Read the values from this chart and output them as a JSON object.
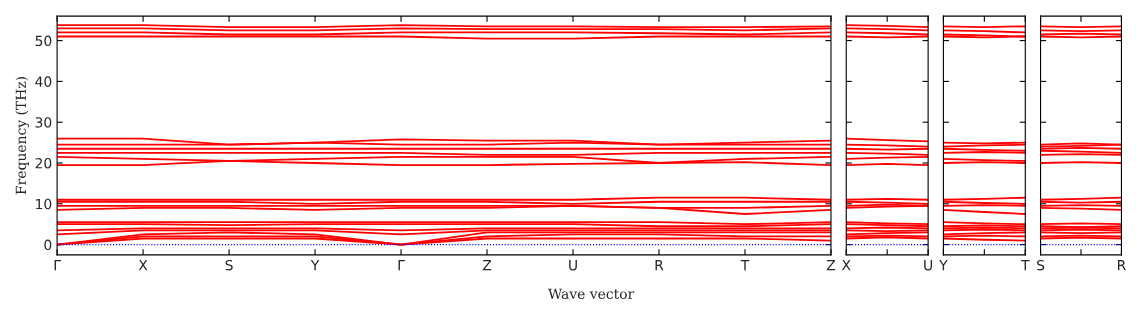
{
  "chart_data": [
    {
      "type": "line",
      "ylabel": "Frequency (THz)",
      "xlabel": "Wave vector",
      "categories": [
        "Γ",
        "X",
        "S",
        "Y",
        "Γ",
        "Z",
        "U",
        "R",
        "T",
        "Z"
      ],
      "ylim": [
        -2.5,
        56
      ],
      "yticks": [
        0,
        10,
        20,
        30,
        40,
        50
      ],
      "ref_lines": [
        {
          "axis": "y",
          "value": 0,
          "color": "#0000ff",
          "line_style": "dotted"
        }
      ],
      "series": [
        {
          "color": "#ff0000",
          "values": [
            51,
            51,
            51,
            51,
            51,
            50.5,
            50.5,
            51,
            51,
            51
          ]
        },
        {
          "color": "#ff0000",
          "values": [
            52,
            52,
            51.5,
            51.5,
            52,
            52,
            52,
            51.8,
            51.5,
            52
          ]
        },
        {
          "color": "#ff0000",
          "values": [
            53,
            53,
            52.5,
            52.5,
            53,
            52.8,
            52.8,
            52.8,
            52.5,
            53
          ]
        },
        {
          "color": "#ff0000",
          "values": [
            53.8,
            53.8,
            53.3,
            53.3,
            53.8,
            53.5,
            53.5,
            53.3,
            53.3,
            53.5
          ]
        },
        {
          "color": "#ff0000",
          "values": [
            19.5,
            19.5,
            20.5,
            20,
            19.5,
            19.5,
            19.8,
            20,
            20.2,
            19.5
          ]
        },
        {
          "color": "#ff0000",
          "values": [
            21.5,
            21,
            20.5,
            21,
            21.5,
            21.5,
            21.5,
            20,
            21,
            21.5
          ]
        },
        {
          "color": "#ff0000",
          "values": [
            22.5,
            22.5,
            22.5,
            22.5,
            22.5,
            22,
            22,
            22.5,
            22.5,
            22.5
          ]
        },
        {
          "color": "#ff0000",
          "values": [
            23.5,
            23.5,
            23.5,
            23.5,
            23.5,
            23.5,
            23.5,
            23.5,
            23.5,
            23.5
          ]
        },
        {
          "color": "#ff0000",
          "values": [
            24.5,
            24.5,
            24.5,
            25,
            24.5,
            24.5,
            25,
            24.5,
            24.5,
            24.5
          ]
        },
        {
          "color": "#ff0000",
          "values": [
            26,
            26,
            24.5,
            25,
            25.8,
            25.5,
            25.5,
            24.5,
            25,
            25.5
          ]
        },
        {
          "color": "#ff0000",
          "values": [
            8.5,
            9,
            9,
            8.5,
            9,
            9,
            9.5,
            9,
            7.5,
            8.5
          ]
        },
        {
          "color": "#ff0000",
          "values": [
            9.5,
            9.5,
            9.5,
            9.5,
            9.5,
            9.5,
            9.5,
            9,
            9,
            9.5
          ]
        },
        {
          "color": "#ff0000",
          "values": [
            10.5,
            10.5,
            10.5,
            10,
            10.5,
            10.5,
            10,
            10.5,
            10.5,
            10.5
          ]
        },
        {
          "color": "#ff0000",
          "values": [
            11,
            11,
            11,
            11,
            11,
            11,
            11,
            11.5,
            11.5,
            11
          ]
        },
        {
          "color": "#ff0000",
          "values": [
            0,
            1.5,
            1.5,
            1.5,
            0,
            1.5,
            1.5,
            1.5,
            1.5,
            1
          ]
        },
        {
          "color": "#ff0000",
          "values": [
            0,
            2,
            2,
            2,
            0,
            2,
            2.5,
            2.5,
            2,
            2
          ]
        },
        {
          "color": "#ff0000",
          "values": [
            0,
            2.5,
            3,
            2.5,
            0,
            3,
            3,
            3,
            3,
            3
          ]
        },
        {
          "color": "#ff0000",
          "values": [
            2.5,
            3.5,
            3.5,
            3.5,
            2.5,
            3.5,
            3.5,
            3.5,
            3.5,
            3.5
          ]
        },
        {
          "color": "#ff0000",
          "values": [
            3.5,
            4,
            4,
            4,
            3.5,
            4,
            4,
            4,
            4,
            4
          ]
        },
        {
          "color": "#ff0000",
          "values": [
            5,
            5,
            4.8,
            5,
            5,
            5,
            5,
            4.5,
            4.5,
            5
          ]
        },
        {
          "color": "#ff0000",
          "values": [
            5.5,
            5.5,
            5.5,
            5.5,
            5.5,
            5.5,
            5.5,
            5.5,
            5,
            5.5
          ]
        }
      ]
    },
    {
      "type": "line",
      "categories": [
        "X",
        null,
        "U"
      ],
      "ylim": [
        -2.5,
        56
      ],
      "yticks": [
        0,
        10,
        20,
        30,
        40,
        50
      ],
      "tick_labels": "x",
      "ref_lines": [
        {
          "axis": "y",
          "value": 0,
          "color": "#0000ff",
          "line_style": "dotted"
        }
      ],
      "series": [
        {
          "color": "#ff0000",
          "values": [
            51,
            50.8,
            51
          ]
        },
        {
          "color": "#ff0000",
          "values": [
            52,
            51.8,
            51.5
          ]
        },
        {
          "color": "#ff0000",
          "values": [
            53,
            52.8,
            52.5
          ]
        },
        {
          "color": "#ff0000",
          "values": [
            53.8,
            53.6,
            53.3
          ]
        },
        {
          "color": "#ff0000",
          "values": [
            19.5,
            19.8,
            19.5
          ]
        },
        {
          "color": "#ff0000",
          "values": [
            21,
            21.3,
            21.5
          ]
        },
        {
          "color": "#ff0000",
          "values": [
            22.5,
            22.3,
            22
          ]
        },
        {
          "color": "#ff0000",
          "values": [
            23.5,
            23.3,
            23.5
          ]
        },
        {
          "color": "#ff0000",
          "values": [
            24.5,
            24.3,
            24
          ]
        },
        {
          "color": "#ff0000",
          "values": [
            26,
            25.6,
            25.3
          ]
        },
        {
          "color": "#ff0000",
          "values": [
            9,
            9.3,
            9.5
          ]
        },
        {
          "color": "#ff0000",
          "values": [
            9.5,
            9.8,
            9.5
          ]
        },
        {
          "color": "#ff0000",
          "values": [
            10.5,
            10.3,
            10
          ]
        },
        {
          "color": "#ff0000",
          "values": [
            11,
            11.2,
            11
          ]
        },
        {
          "color": "#ff0000",
          "values": [
            1.5,
            1.8,
            1.5
          ]
        },
        {
          "color": "#ff0000",
          "values": [
            2,
            2.2,
            2
          ]
        },
        {
          "color": "#ff0000",
          "values": [
            2.5,
            2.8,
            3
          ]
        },
        {
          "color": "#ff0000",
          "values": [
            3.5,
            3.3,
            3.5
          ]
        },
        {
          "color": "#ff0000",
          "values": [
            4,
            4.2,
            4
          ]
        },
        {
          "color": "#ff0000",
          "values": [
            5,
            4.8,
            4.5
          ]
        },
        {
          "color": "#ff0000",
          "values": [
            5.5,
            5.2,
            5
          ]
        }
      ]
    },
    {
      "type": "line",
      "categories": [
        "Y",
        null,
        "T"
      ],
      "ylim": [
        -2.5,
        56
      ],
      "yticks": [
        0,
        10,
        20,
        30,
        40,
        50
      ],
      "tick_labels": "x",
      "ref_lines": [
        {
          "axis": "y",
          "value": 0,
          "color": "#0000ff",
          "line_style": "dotted"
        }
      ],
      "series": [
        {
          "color": "#ff0000",
          "values": [
            51,
            50.8,
            51
          ]
        },
        {
          "color": "#ff0000",
          "values": [
            51.5,
            51.3,
            51
          ]
        },
        {
          "color": "#ff0000",
          "values": [
            52.5,
            52.3,
            52
          ]
        },
        {
          "color": "#ff0000",
          "values": [
            53.5,
            53.3,
            53.5
          ]
        },
        {
          "color": "#ff0000",
          "values": [
            20,
            20.2,
            20
          ]
        },
        {
          "color": "#ff0000",
          "values": [
            21,
            20.7,
            20.5
          ]
        },
        {
          "color": "#ff0000",
          "values": [
            22.5,
            22.7,
            22.5
          ]
        },
        {
          "color": "#ff0000",
          "values": [
            23.5,
            23.2,
            23
          ]
        },
        {
          "color": "#ff0000",
          "values": [
            24,
            24.3,
            24.5
          ]
        },
        {
          "color": "#ff0000",
          "values": [
            25,
            24.8,
            25
          ]
        },
        {
          "color": "#ff0000",
          "values": [
            8.5,
            8,
            7.5
          ]
        },
        {
          "color": "#ff0000",
          "values": [
            9.5,
            9.7,
            9.5
          ]
        },
        {
          "color": "#ff0000",
          "values": [
            10.5,
            10.2,
            10
          ]
        },
        {
          "color": "#ff0000",
          "values": [
            11,
            11.2,
            11.5
          ]
        },
        {
          "color": "#ff0000",
          "values": [
            1.5,
            1.2,
            1
          ]
        },
        {
          "color": "#ff0000",
          "values": [
            2,
            2.2,
            2
          ]
        },
        {
          "color": "#ff0000",
          "values": [
            2.5,
            2.8,
            3
          ]
        },
        {
          "color": "#ff0000",
          "values": [
            3.5,
            3.7,
            3.5
          ]
        },
        {
          "color": "#ff0000",
          "values": [
            4,
            4.2,
            4
          ]
        },
        {
          "color": "#ff0000",
          "values": [
            4.5,
            4.7,
            4.5
          ]
        },
        {
          "color": "#ff0000",
          "values": [
            5.5,
            5.2,
            5
          ]
        }
      ]
    },
    {
      "type": "line",
      "categories": [
        "S",
        null,
        "R"
      ],
      "ylim": [
        -2.5,
        56
      ],
      "yticks": [
        0,
        10,
        20,
        30,
        40,
        50
      ],
      "tick_labels": "x",
      "ref_lines": [
        {
          "axis": "y",
          "value": 0,
          "color": "#0000ff",
          "line_style": "dotted"
        }
      ],
      "series": [
        {
          "color": "#ff0000",
          "values": [
            51,
            50.8,
            51
          ]
        },
        {
          "color": "#ff0000",
          "values": [
            51.5,
            51.7,
            51.5
          ]
        },
        {
          "color": "#ff0000",
          "values": [
            52.5,
            52.3,
            52.5
          ]
        },
        {
          "color": "#ff0000",
          "values": [
            53.5,
            53.3,
            53.5
          ]
        },
        {
          "color": "#ff0000",
          "values": [
            20,
            20.2,
            20
          ]
        },
        {
          "color": "#ff0000",
          "values": [
            22,
            22.2,
            22
          ]
        },
        {
          "color": "#ff0000",
          "values": [
            23,
            22.8,
            22.5
          ]
        },
        {
          "color": "#ff0000",
          "values": [
            23.5,
            23.7,
            23.5
          ]
        },
        {
          "color": "#ff0000",
          "values": [
            24,
            24.2,
            24.5
          ]
        },
        {
          "color": "#ff0000",
          "values": [
            24.5,
            24.8,
            24.5
          ]
        },
        {
          "color": "#ff0000",
          "values": [
            9,
            8.8,
            8.5
          ]
        },
        {
          "color": "#ff0000",
          "values": [
            9.5,
            9.7,
            9.5
          ]
        },
        {
          "color": "#ff0000",
          "values": [
            10.5,
            10.3,
            10.5
          ]
        },
        {
          "color": "#ff0000",
          "values": [
            11,
            11.2,
            11.5
          ]
        },
        {
          "color": "#ff0000",
          "values": [
            1.5,
            1.7,
            1.5
          ]
        },
        {
          "color": "#ff0000",
          "values": [
            2,
            2.2,
            2
          ]
        },
        {
          "color": "#ff0000",
          "values": [
            3,
            2.8,
            3
          ]
        },
        {
          "color": "#ff0000",
          "values": [
            3.5,
            3.7,
            3.5
          ]
        },
        {
          "color": "#ff0000",
          "values": [
            4,
            4.2,
            4
          ]
        },
        {
          "color": "#ff0000",
          "values": [
            4.5,
            4.3,
            4.5
          ]
        },
        {
          "color": "#ff0000",
          "values": [
            5,
            5.2,
            5
          ]
        }
      ]
    }
  ]
}
